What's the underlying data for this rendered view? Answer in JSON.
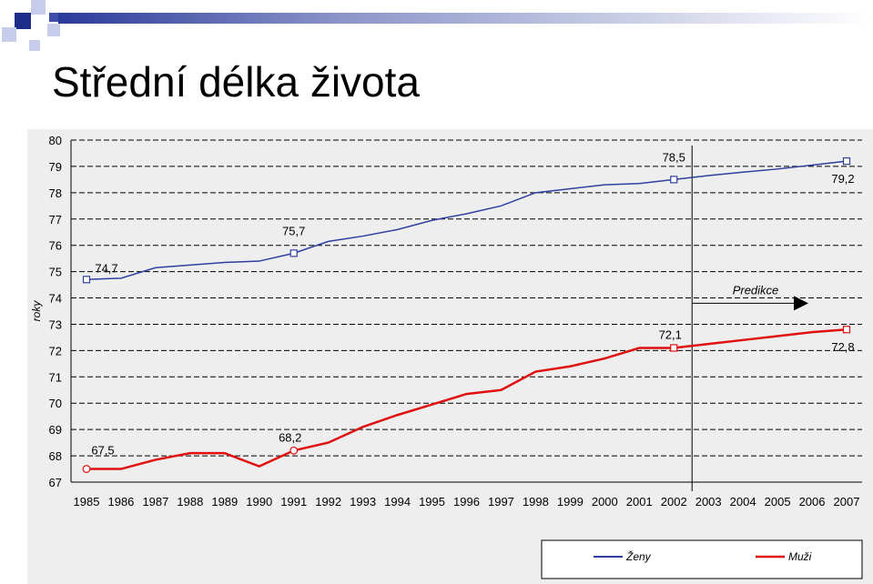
{
  "slide": {
    "title": "Střední délka života"
  },
  "chart_data": {
    "type": "line",
    "ylabel": "roky",
    "ylim": [
      67,
      80
    ],
    "y_ticks": [
      80,
      79,
      78,
      77,
      76,
      75,
      74,
      73,
      72,
      71,
      70,
      69,
      68,
      67
    ],
    "categories": [
      "1985",
      "1986",
      "1987",
      "1988",
      "1989",
      "1990",
      "1991",
      "1992",
      "1993",
      "1994",
      "1995",
      "1996",
      "1997",
      "1998",
      "1999",
      "2000",
      "2001",
      "2002",
      "2003",
      "2004",
      "2005",
      "2006",
      "2007"
    ],
    "grid": true,
    "legend_position": "bottom-right",
    "prediction_label": "Predikce",
    "prediction_start": "2002",
    "series": [
      {
        "name": "Ženy",
        "color": "#2f3f9f",
        "values": [
          74.7,
          74.75,
          75.15,
          75.25,
          75.35,
          75.4,
          75.7,
          76.15,
          76.35,
          76.6,
          76.95,
          77.2,
          77.5,
          78.0,
          78.15,
          78.3,
          78.35,
          78.5,
          78.65,
          78.78,
          78.9,
          79.05,
          79.2
        ],
        "labels": [
          {
            "index": 0,
            "text": "74,7"
          },
          {
            "index": 6,
            "text": "75,7"
          },
          {
            "index": 17,
            "text": "78,5"
          },
          {
            "index": 22,
            "text": "79,2"
          }
        ]
      },
      {
        "name": "Muži",
        "color": "#e01010",
        "values": [
          67.5,
          67.5,
          67.85,
          68.1,
          68.1,
          67.6,
          68.2,
          68.5,
          69.1,
          69.55,
          69.95,
          70.35,
          70.5,
          71.2,
          71.4,
          71.7,
          72.1,
          72.1,
          72.25,
          72.4,
          72.55,
          72.7,
          72.8
        ],
        "labels": [
          {
            "index": 0,
            "text": "67,5"
          },
          {
            "index": 6,
            "text": "68,2"
          },
          {
            "index": 17,
            "text": "72,1"
          },
          {
            "index": 22,
            "text": "72,8"
          }
        ]
      }
    ]
  }
}
